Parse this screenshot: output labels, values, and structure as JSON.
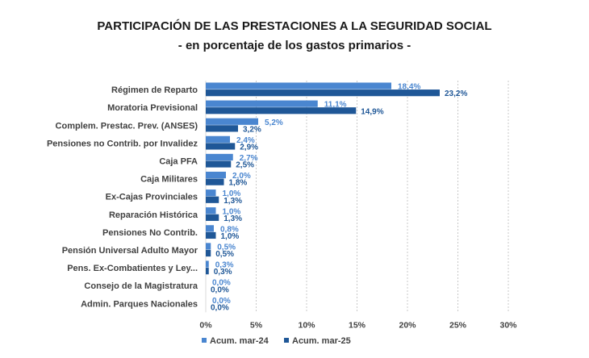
{
  "chart_data": {
    "type": "bar",
    "orientation": "horizontal",
    "title": "PARTICIPACIÓN DE LAS PRESTACIONES A LA SEGURIDAD SOCIAL",
    "subtitle": "- en porcentaje de los gastos primarios -",
    "categories": [
      "Régimen de Reparto",
      "Moratoria Previsional",
      "Complem. Prestac. Prev. (ANSES)",
      "Pensiones no Contrib. por Invalidez",
      "Caja PFA",
      "Caja Militares",
      "Ex-Cajas Provinciales",
      "Reparación Histórica",
      "Pensiones No Contrib.",
      "Pensión Universal Adulto Mayor",
      "Pens. Ex-Combatientes y Ley...",
      "Consejo de la Magistratura",
      "Admin. Parques Nacionales"
    ],
    "series": [
      {
        "name": "Acum. mar-24",
        "color": "#4a86d0",
        "values": [
          18.4,
          11.1,
          5.2,
          2.4,
          2.7,
          2.0,
          1.0,
          1.0,
          0.8,
          0.5,
          0.3,
          0.0,
          0.0
        ],
        "labels": [
          "18,4%",
          "11,1%",
          "5,2%",
          "2,4%",
          "2,7%",
          "2,0%",
          "1,0%",
          "1,0%",
          "0,8%",
          "0,5%",
          "0,3%",
          "0,0%",
          "0,0%"
        ]
      },
      {
        "name": "Acum. mar-25",
        "color": "#1f5797",
        "values": [
          23.2,
          14.9,
          3.2,
          2.9,
          2.5,
          1.8,
          1.3,
          1.3,
          1.0,
          0.5,
          0.3,
          0.0,
          0.0
        ],
        "labels": [
          "23,2%",
          "14,9%",
          "3,2%",
          "2,9%",
          "2,5%",
          "1,8%",
          "1,3%",
          "1,3%",
          "1,0%",
          "0,5%",
          "0,3%",
          "0,0%",
          "0,0%"
        ]
      }
    ],
    "xlim": [
      0,
      30
    ],
    "xticks": [
      0,
      5,
      10,
      15,
      20,
      25,
      30
    ],
    "xtick_labels": [
      "0%",
      "5%",
      "10%",
      "15%",
      "20%",
      "25%",
      "30%"
    ],
    "grid": true,
    "legend_position": "bottom",
    "xlabel": "",
    "ylabel": ""
  }
}
